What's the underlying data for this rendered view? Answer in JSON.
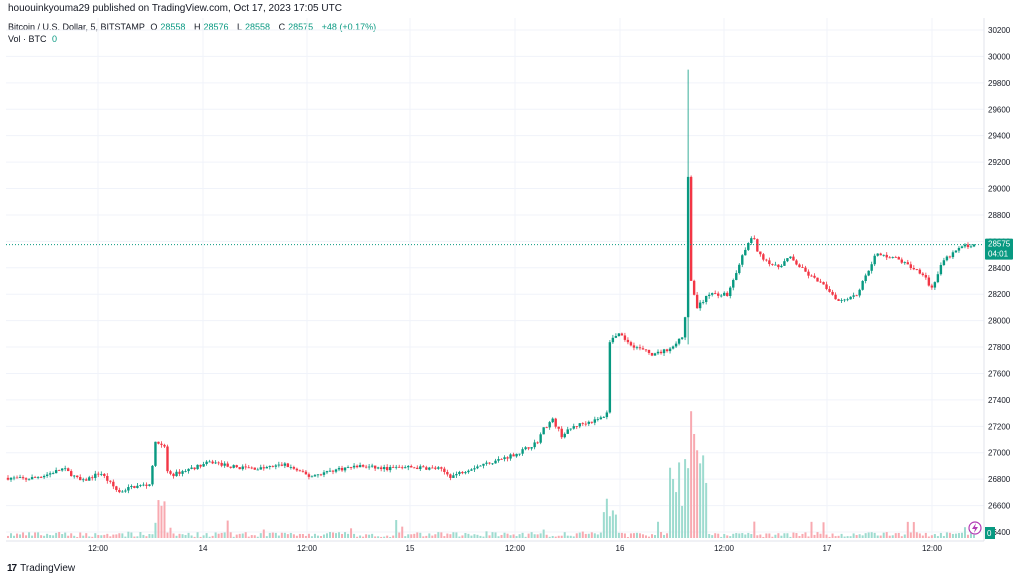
{
  "header": {
    "published": "hououinkyouma29 published on TradingView.com, Oct 17, 2023 17:05 UTC"
  },
  "legend": {
    "symbol": "Bitcoin / U.S. Dollar, 5, BITSTAMP",
    "open_label": "O",
    "open": "28558",
    "high_label": "H",
    "high": "28576",
    "low_label": "L",
    "low": "28558",
    "close_label": "C",
    "close": "28575",
    "change": "+48 (+0.17%)",
    "vol_label": "Vol · BTC",
    "vol_value": "0"
  },
  "footer": {
    "brand": "TradingView",
    "logo": "17"
  },
  "colors": {
    "up": "#089981",
    "down": "#f23645",
    "grid": "#f0f3fa",
    "axis_text": "#131722",
    "price_line": "#089981",
    "lightning": "#b23ab5"
  },
  "chart_data": {
    "type": "candlestick",
    "price_axis": {
      "min": 26400,
      "max": 30200,
      "step": 200,
      "ticks": [
        "30200",
        "30000",
        "29800",
        "29600",
        "29400",
        "29200",
        "29000",
        "28800",
        "28600",
        "28400",
        "28200",
        "28000",
        "27800",
        "27600",
        "27400",
        "27200",
        "27000",
        "26800",
        "26600",
        "26400"
      ]
    },
    "time_axis": {
      "labels": [
        "12:00",
        "14",
        "12:00",
        "15",
        "12:00",
        "16",
        "12:00",
        "17",
        "12:00"
      ],
      "label_x_px_note": "positions handled in script"
    },
    "last_price": {
      "value": 28575,
      "label": "28575",
      "countdown": "04:01"
    },
    "volume_last": "0",
    "path": [
      [
        0,
        26810
      ],
      [
        0.03,
        26800
      ],
      [
        0.06,
        26830
      ],
      [
        0.09,
        26880
      ],
      [
        0.12,
        26780
      ],
      [
        0.15,
        26850
      ],
      [
        0.18,
        26700
      ],
      [
        0.2,
        26740
      ],
      [
        0.23,
        26760
      ],
      [
        0.24,
        27080
      ],
      [
        0.255,
        27050
      ],
      [
        0.26,
        26820
      ],
      [
        0.29,
        26870
      ],
      [
        0.33,
        26930
      ],
      [
        0.37,
        26890
      ],
      [
        0.41,
        26880
      ],
      [
        0.45,
        26910
      ],
      [
        0.49,
        26820
      ],
      [
        0.53,
        26870
      ],
      [
        0.57,
        26900
      ],
      [
        0.61,
        26880
      ],
      [
        0.65,
        26890
      ],
      [
        0.7,
        26880
      ],
      [
        0.72,
        26820
      ],
      [
        0.75,
        26880
      ],
      [
        0.8,
        26950
      ],
      [
        0.83,
        27000
      ],
      [
        0.86,
        27080
      ],
      [
        0.87,
        27180
      ],
      [
        0.885,
        27250
      ],
      [
        0.9,
        27130
      ],
      [
        0.92,
        27200
      ],
      [
        0.94,
        27230
      ],
      [
        0.96,
        27250
      ],
      [
        0.975,
        27300
      ],
      [
        0.978,
        27850
      ],
      [
        0.99,
        27900
      ],
      [
        1.02,
        27800
      ],
      [
        1.05,
        27740
      ],
      [
        1.08,
        27800
      ],
      [
        1.1,
        27900
      ],
      [
        1.105,
        29150
      ],
      [
        1.11,
        28300
      ],
      [
        1.12,
        28100
      ],
      [
        1.14,
        28200
      ],
      [
        1.17,
        28200
      ],
      [
        1.19,
        28450
      ],
      [
        1.21,
        28650
      ],
      [
        1.22,
        28500
      ],
      [
        1.25,
        28400
      ],
      [
        1.27,
        28480
      ],
      [
        1.3,
        28350
      ],
      [
        1.33,
        28250
      ],
      [
        1.35,
        28150
      ],
      [
        1.38,
        28200
      ],
      [
        1.41,
        28500
      ],
      [
        1.44,
        28480
      ],
      [
        1.47,
        28400
      ],
      [
        1.49,
        28350
      ],
      [
        1.5,
        28230
      ],
      [
        1.52,
        28450
      ],
      [
        1.55,
        28560
      ],
      [
        1.57,
        28575
      ]
    ],
    "spike": {
      "at": 1.105,
      "high": 29900,
      "low": 27820
    }
  }
}
